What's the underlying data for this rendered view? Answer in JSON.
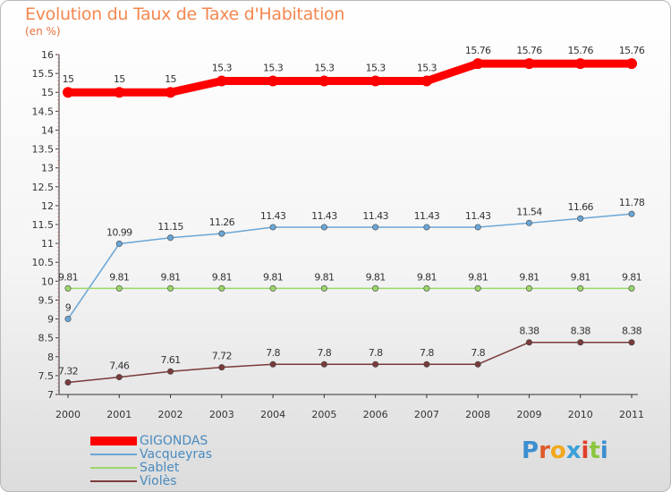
{
  "header": {
    "title": "Evolution du Taux de Taxe d'Habitation",
    "unit": "(en %)"
  },
  "chart_data": {
    "type": "line",
    "title": "Evolution du Taux de Taxe d'Habitation",
    "ylabel": "(en %)",
    "xlabel": "",
    "x": [
      "2000",
      "2001",
      "2002",
      "2003",
      "2004",
      "2005",
      "2006",
      "2007",
      "2008",
      "2009",
      "2010",
      "2011"
    ],
    "ylim": [
      7,
      16
    ],
    "yticks": [
      "7",
      "7.5",
      "8",
      "8.5",
      "9",
      "9.5",
      "10",
      "10.5",
      "11",
      "11.5",
      "12",
      "12.5",
      "13",
      "13.5",
      "14",
      "14.5",
      "15",
      "15.5",
      "16"
    ],
    "ytick_values": [
      7,
      7.5,
      8,
      8.5,
      9,
      9.5,
      10,
      10.5,
      11,
      11.5,
      12,
      12.5,
      13,
      13.5,
      14,
      14.5,
      15,
      15.5,
      16
    ],
    "series": [
      {
        "name": "GIGONDAS",
        "color": "#ff0000",
        "values": [
          15,
          15,
          15,
          15.3,
          15.3,
          15.3,
          15.3,
          15.3,
          15.76,
          15.76,
          15.76,
          15.76
        ],
        "labels": [
          "15",
          "15",
          "15",
          "15.3",
          "15.3",
          "15.3",
          "15.3",
          "15.3",
          "15.76",
          "15.76",
          "15.76",
          "15.76"
        ]
      },
      {
        "name": "Vacqueyras",
        "color": "#6aa6d6",
        "values": [
          9,
          10.99,
          11.15,
          11.26,
          11.43,
          11.43,
          11.43,
          11.43,
          11.43,
          11.54,
          11.66,
          11.78
        ],
        "labels": [
          "9",
          "10.99",
          "11.15",
          "11.26",
          "11.43",
          "11.43",
          "11.43",
          "11.43",
          "11.43",
          "11.54",
          "11.66",
          "11.78"
        ]
      },
      {
        "name": "Sablet",
        "color": "#9ad66a",
        "values": [
          9.81,
          9.81,
          9.81,
          9.81,
          9.81,
          9.81,
          9.81,
          9.81,
          9.81,
          9.81,
          9.81,
          9.81
        ],
        "labels": [
          "9.81",
          "9.81",
          "9.81",
          "9.81",
          "9.81",
          "9.81",
          "9.81",
          "9.81",
          "9.81",
          "9.81",
          "9.81",
          "9.81"
        ]
      },
      {
        "name": "Violès",
        "color": "#7a3a3a",
        "values": [
          7.32,
          7.46,
          7.61,
          7.72,
          7.8,
          7.8,
          7.8,
          7.8,
          7.8,
          8.38,
          8.38,
          8.38
        ],
        "labels": [
          "7.32",
          "7.46",
          "7.61",
          "7.72",
          "7.8",
          "7.8",
          "7.8",
          "7.8",
          "7.8",
          "8.38",
          "8.38",
          "8.38"
        ]
      }
    ],
    "grid": false,
    "legend": "bottom-left"
  },
  "logo": {
    "letters": [
      "P",
      "r",
      "o",
      "x",
      "i",
      "t",
      "i"
    ],
    "colors": [
      "#3b8fd0",
      "#e05a2b",
      "#f2a81d",
      "#3aa0d8",
      "#e0402a",
      "#8cc63f",
      "#3b8fd0"
    ]
  }
}
